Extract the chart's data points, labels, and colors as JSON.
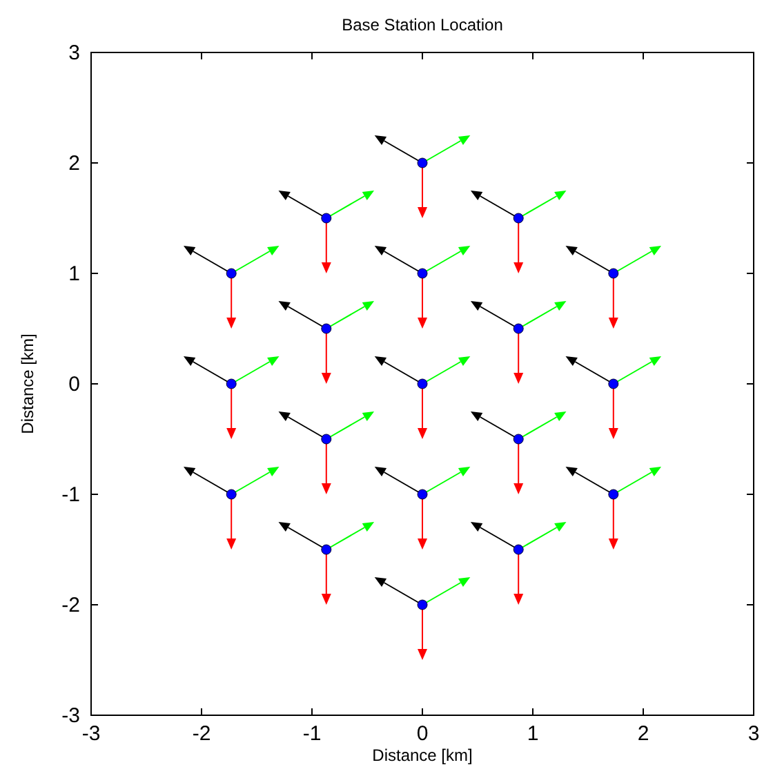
{
  "chart_data": {
    "type": "scatter",
    "title": "Base Station Location",
    "xlabel": "Distance [km]",
    "ylabel": "Distance [km]",
    "xlim": [
      -3,
      3
    ],
    "ylim": [
      -3,
      3
    ],
    "xticks": [
      -3,
      -2,
      -1,
      0,
      1,
      2,
      3
    ],
    "yticks": [
      -3,
      -2,
      -1,
      0,
      1,
      2,
      3
    ],
    "grid": false,
    "series": [
      {
        "color": "#0000ff",
        "marker": "circle",
        "x": [
          0,
          -0.87,
          0.87,
          -1.73,
          0,
          1.73,
          -0.87,
          0.87,
          -1.73,
          0,
          1.73,
          -0.87,
          0.87,
          -1.73,
          0,
          1.73,
          -0.87,
          0.87,
          0
        ],
        "values": [
          2,
          1.5,
          1.5,
          1,
          1,
          1,
          0.5,
          0.5,
          0,
          0,
          0,
          -0.5,
          -0.5,
          -1,
          -1,
          -1,
          -1.5,
          -1.5,
          -2
        ]
      }
    ]
  }
}
